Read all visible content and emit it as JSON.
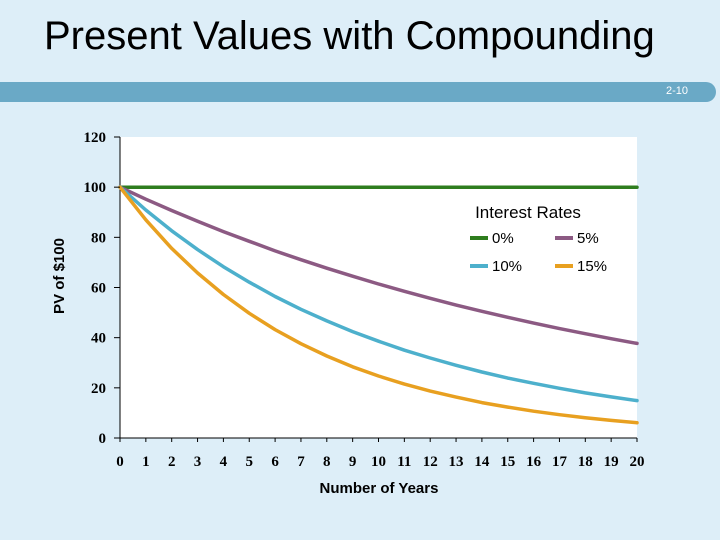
{
  "slide": {
    "title": "Present Values with Compounding",
    "number": "2-10"
  },
  "colors": {
    "background": "#ddeef8",
    "banner": "#6aa9c6",
    "plot_area": "#ffffff"
  },
  "chart_data": {
    "type": "line",
    "title": "",
    "xlabel": "Number of Years",
    "ylabel": "PV of $100",
    "x": [
      0,
      1,
      2,
      3,
      4,
      5,
      6,
      7,
      8,
      9,
      10,
      11,
      12,
      13,
      14,
      15,
      16,
      17,
      18,
      19,
      20
    ],
    "xlim": [
      0,
      20
    ],
    "ylim": [
      0,
      120
    ],
    "yticks": [
      0,
      20,
      40,
      60,
      80,
      100,
      120
    ],
    "grid": false,
    "legend": {
      "title": "Interest Rates",
      "placement": "top-right"
    },
    "series": [
      {
        "name": "0%",
        "color": "#2e7d1e",
        "values": [
          100,
          100,
          100,
          100,
          100,
          100,
          100,
          100,
          100,
          100,
          100,
          100,
          100,
          100,
          100,
          100,
          100,
          100,
          100,
          100,
          100
        ]
      },
      {
        "name": "5%",
        "color": "#8c5a83",
        "values": [
          100,
          95.2,
          90.7,
          86.4,
          82.3,
          78.4,
          74.6,
          71.1,
          67.7,
          64.5,
          61.4,
          58.5,
          55.7,
          53.0,
          50.5,
          48.1,
          45.8,
          43.6,
          41.6,
          39.6,
          37.7
        ]
      },
      {
        "name": "10%",
        "color": "#4db0cc",
        "values": [
          100,
          90.9,
          82.6,
          75.1,
          68.3,
          62.1,
          56.4,
          51.3,
          46.7,
          42.4,
          38.6,
          35.0,
          31.9,
          29.0,
          26.3,
          23.9,
          21.8,
          19.8,
          18.0,
          16.4,
          14.9
        ]
      },
      {
        "name": "15%",
        "color": "#e8a020",
        "values": [
          100,
          87.0,
          75.6,
          65.8,
          57.2,
          49.7,
          43.2,
          37.6,
          32.7,
          28.4,
          24.7,
          21.5,
          18.7,
          16.3,
          14.1,
          12.3,
          10.7,
          9.3,
          8.1,
          7.0,
          6.1
        ]
      }
    ]
  }
}
